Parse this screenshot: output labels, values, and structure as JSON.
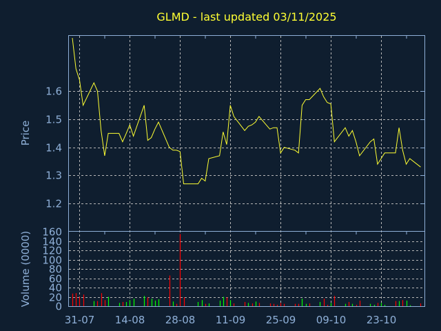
{
  "chart_data": [
    {
      "type": "line",
      "title": "GLMD - last updated 03/11/2025",
      "ylabel": "Price",
      "year": 2025,
      "ylim": [
        1.1,
        1.8
      ],
      "yticks": [
        "1.2",
        "1.3",
        "1.4",
        "1.5",
        "1.6"
      ],
      "grid": true,
      "line_color": "#ffff33",
      "x": [
        "29-07",
        "30-07",
        "31-07",
        "01-08",
        "04-08",
        "05-08",
        "06-08",
        "07-08",
        "08-08",
        "11-08",
        "12-08",
        "13-08",
        "14-08",
        "15-08",
        "18-08",
        "19-08",
        "20-08",
        "21-08",
        "22-08",
        "25-08",
        "26-08",
        "27-08",
        "28-08",
        "29-08",
        "02-09",
        "03-09",
        "04-09",
        "05-09",
        "08-09",
        "09-09",
        "10-09",
        "11-09",
        "12-09",
        "15-09",
        "16-09",
        "17-09",
        "18-09",
        "19-09",
        "22-09",
        "23-09",
        "24-09",
        "25-09",
        "26-09",
        "29-09",
        "30-09",
        "01-10",
        "02-10",
        "03-10",
        "06-10",
        "07-10",
        "08-10",
        "09-10",
        "10-10",
        "13-10",
        "14-10",
        "15-10",
        "16-10",
        "17-10",
        "20-10",
        "21-10",
        "22-10",
        "23-10",
        "24-10",
        "27-10",
        "28-10",
        "29-10",
        "30-10",
        "31-10",
        "03-11"
      ],
      "values": [
        1.79,
        1.68,
        1.64,
        1.55,
        1.63,
        1.6,
        1.46,
        1.37,
        1.45,
        1.45,
        1.42,
        1.45,
        1.48,
        1.44,
        1.55,
        1.425,
        1.435,
        1.465,
        1.49,
        1.4,
        1.39,
        1.39,
        1.385,
        1.27,
        1.27,
        1.29,
        1.28,
        1.36,
        1.37,
        1.455,
        1.41,
        1.55,
        1.51,
        1.46,
        1.475,
        1.48,
        1.49,
        1.51,
        1.465,
        1.47,
        1.47,
        1.38,
        1.4,
        1.39,
        1.38,
        1.55,
        1.57,
        1.57,
        1.61,
        1.58,
        1.56,
        1.555,
        1.42,
        1.47,
        1.44,
        1.46,
        1.42,
        1.37,
        1.42,
        1.43,
        1.34,
        1.36,
        1.38,
        1.38,
        1.47,
        1.39,
        1.34,
        1.36,
        1.33
      ]
    },
    {
      "type": "bar",
      "ylabel": "Volume (0000)",
      "ylim": [
        0,
        160
      ],
      "yticks": [
        "0",
        "20",
        "40",
        "60",
        "80",
        "100",
        "120",
        "140",
        "160"
      ],
      "xticks": [
        "31-07",
        "14-08",
        "28-08",
        "11-09",
        "25-09",
        "09-10",
        "23-10"
      ],
      "grid": true,
      "colors": {
        "up": "#00ff00",
        "down": "#ff0000"
      },
      "x": [
        "29-07",
        "30-07",
        "31-07",
        "01-08",
        "04-08",
        "05-08",
        "06-08",
        "07-08",
        "08-08",
        "11-08",
        "12-08",
        "13-08",
        "14-08",
        "15-08",
        "18-08",
        "19-08",
        "20-08",
        "21-08",
        "22-08",
        "25-08",
        "26-08",
        "27-08",
        "28-08",
        "29-08",
        "02-09",
        "03-09",
        "04-09",
        "05-09",
        "08-09",
        "09-09",
        "10-09",
        "11-09",
        "12-09",
        "15-09",
        "16-09",
        "17-09",
        "18-09",
        "19-09",
        "22-09",
        "23-09",
        "24-09",
        "25-09",
        "26-09",
        "29-09",
        "30-09",
        "01-10",
        "02-10",
        "03-10",
        "06-10",
        "07-10",
        "08-10",
        "09-10",
        "10-10",
        "13-10",
        "14-10",
        "15-10",
        "16-10",
        "17-10",
        "20-10",
        "21-10",
        "22-10",
        "23-10",
        "24-10",
        "27-10",
        "28-10",
        "29-10",
        "30-10",
        "31-10",
        "03-11"
      ],
      "values": [
        27,
        28,
        20,
        25,
        11,
        11,
        28,
        13,
        20,
        7,
        9,
        9,
        13,
        16,
        22,
        19,
        16,
        12,
        15,
        66,
        10,
        5,
        155,
        19,
        9,
        13,
        5,
        6,
        12,
        20,
        19,
        13,
        6,
        9,
        7,
        6,
        10,
        7,
        6,
        5,
        3,
        7,
        5,
        5,
        5,
        16,
        5,
        6,
        9,
        16,
        3,
        7,
        22,
        5,
        9,
        5,
        3,
        12,
        5,
        3,
        7,
        7,
        3,
        11,
        11,
        13,
        12,
        2,
        6
      ],
      "direction": [
        "down",
        "down",
        "down",
        "down",
        "up",
        "down",
        "down",
        "down",
        "up",
        "up",
        "down",
        "up",
        "up",
        "up",
        "up",
        "down",
        "up",
        "up",
        "up",
        "down",
        "up",
        "down",
        "down",
        "down",
        "up",
        "up",
        "down",
        "up",
        "up",
        "up",
        "down",
        "up",
        "down",
        "down",
        "up",
        "down",
        "up",
        "down",
        "down",
        "down",
        "down",
        "down",
        "down",
        "down",
        "down",
        "up",
        "up",
        "down",
        "up",
        "down",
        "down",
        "up",
        "down",
        "up",
        "down",
        "up",
        "down",
        "down",
        "up",
        "up",
        "down",
        "up",
        "up",
        "down",
        "up",
        "down",
        "up",
        "up",
        "down"
      ]
    }
  ]
}
